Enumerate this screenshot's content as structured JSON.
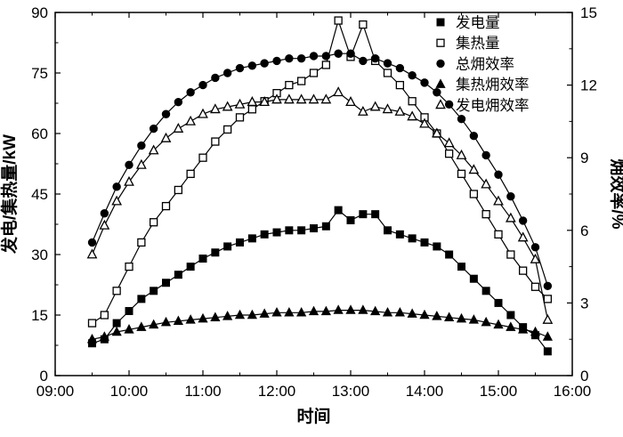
{
  "figure": {
    "title": "",
    "background": "#ffffff",
    "ink_color": "#000000"
  },
  "chart_data": {
    "type": "line",
    "xlabel": "时间",
    "ylabel_left": "发电/集热量/kW",
    "ylabel_right": "㶲效率/%",
    "xlim": [
      9,
      16
    ],
    "ylim_left": [
      0,
      90
    ],
    "ylim_right": [
      0,
      15
    ],
    "x_ticks": [
      9,
      10,
      11,
      12,
      13,
      14,
      15,
      16
    ],
    "x_tick_labels": [
      "09:00",
      "10:00",
      "11:00",
      "12:00",
      "13:00",
      "14:00",
      "15:00",
      "16:00"
    ],
    "y_left_ticks": [
      0,
      15,
      30,
      45,
      60,
      75,
      90
    ],
    "y_right_ticks": [
      0,
      3,
      6,
      9,
      12,
      15
    ],
    "x_minor_step": 0.5,
    "y_left_minor_step": 7.5,
    "y_right_minor_step": 1.5,
    "grid": false,
    "legend_position": "top-right",
    "x_hours": [
      9.5,
      9.667,
      9.833,
      10,
      10.167,
      10.333,
      10.5,
      10.667,
      10.833,
      11,
      11.167,
      11.333,
      11.5,
      11.667,
      11.833,
      12,
      12.167,
      12.333,
      12.5,
      12.667,
      12.833,
      13,
      13.167,
      13.333,
      13.5,
      13.667,
      13.833,
      14,
      14.167,
      14.333,
      14.5,
      14.667,
      14.833,
      15,
      15.167,
      15.333,
      15.5,
      15.667
    ],
    "series": [
      {
        "name": "发电量",
        "axis": "left",
        "marker": "square-filled",
        "values": [
          8,
          9,
          13,
          16,
          19,
          21,
          23,
          25,
          27,
          29,
          30.5,
          32,
          33,
          34,
          35,
          35.5,
          36,
          36,
          36.5,
          37,
          41,
          38.5,
          40,
          40,
          36,
          35,
          34,
          33,
          32,
          30,
          27,
          24,
          21,
          18,
          15,
          12,
          10,
          6
        ]
      },
      {
        "name": "集热量",
        "axis": "left",
        "marker": "square-open",
        "values": [
          13,
          15,
          21,
          27,
          33,
          38,
          42,
          46,
          50,
          54,
          58,
          61,
          64,
          66,
          68,
          70,
          72,
          73,
          75,
          77,
          88,
          79,
          87,
          78,
          75,
          72,
          68,
          64,
          60,
          55,
          50,
          45,
          40,
          35,
          30,
          26,
          22,
          19
        ]
      },
      {
        "name": "总㶲效率",
        "axis": "right",
        "marker": "circle-filled",
        "values": [
          5.5,
          6.7,
          7.8,
          8.7,
          9.5,
          10.2,
          10.8,
          11.3,
          11.7,
          12,
          12.3,
          12.5,
          12.7,
          12.8,
          12.9,
          13,
          13.1,
          13.1,
          13.2,
          13.2,
          13.3,
          13.3,
          13,
          13.1,
          12.9,
          12.7,
          12.4,
          12.1,
          11.7,
          11.2,
          10.6,
          9.9,
          9.1,
          8.3,
          7.4,
          6.4,
          5.3,
          3.7
        ]
      },
      {
        "name": "集热㶲效率",
        "axis": "right",
        "marker": "triangle-filled",
        "values": [
          1.5,
          1.6,
          1.8,
          1.9,
          2,
          2.1,
          2.2,
          2.25,
          2.3,
          2.35,
          2.4,
          2.45,
          2.5,
          2.5,
          2.55,
          2.6,
          2.6,
          2.6,
          2.65,
          2.65,
          2.7,
          2.7,
          2.7,
          2.65,
          2.6,
          2.6,
          2.55,
          2.5,
          2.45,
          2.4,
          2.35,
          2.3,
          2.2,
          2.1,
          2,
          1.9,
          1.8,
          1.6
        ]
      },
      {
        "name": "发电㶲效率",
        "axis": "right",
        "marker": "triangle-open",
        "values": [
          5,
          6.2,
          7.2,
          8,
          8.7,
          9.3,
          9.8,
          10.2,
          10.5,
          10.8,
          11,
          11.1,
          11.2,
          11.3,
          11.3,
          11.4,
          11.4,
          11.4,
          11.4,
          11.4,
          11.7,
          11.3,
          10.9,
          11.1,
          11,
          10.9,
          10.7,
          10.4,
          10,
          9.6,
          9.1,
          8.5,
          7.9,
          7.2,
          6.5,
          5.7,
          4.8,
          2.3
        ]
      }
    ]
  }
}
